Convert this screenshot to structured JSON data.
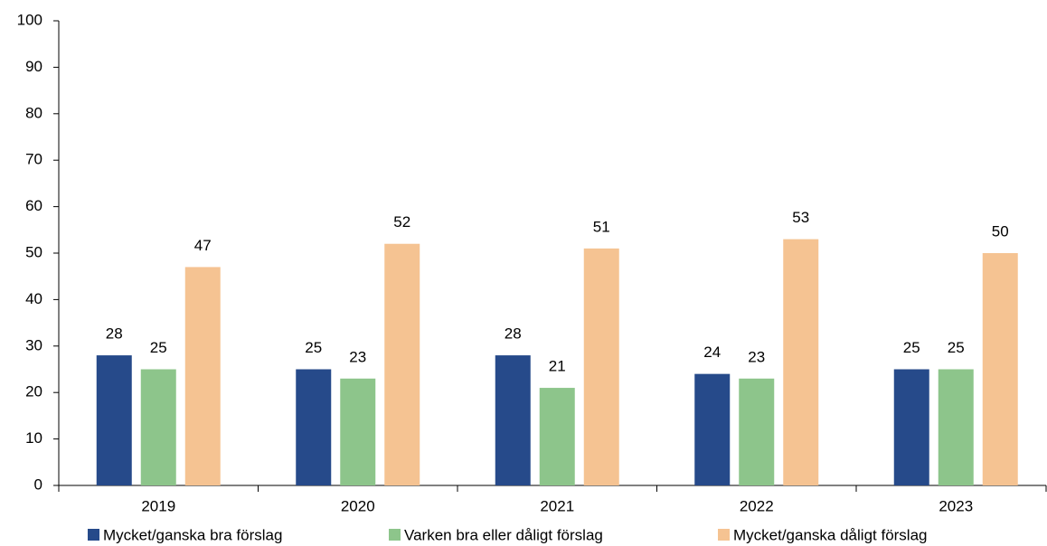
{
  "chart_data": {
    "type": "bar",
    "categories": [
      "2019",
      "2020",
      "2021",
      "2022",
      "2023"
    ],
    "series": [
      {
        "name": "Mycket/ganska bra förslag",
        "color": "#264a8a",
        "values": [
          28,
          25,
          28,
          24,
          25
        ]
      },
      {
        "name": "Varken bra eller dåligt förslag",
        "color": "#8dc58b",
        "values": [
          25,
          23,
          21,
          23,
          25
        ]
      },
      {
        "name": "Mycket/ganska dåligt förslag",
        "color": "#f5c392",
        "values": [
          47,
          52,
          51,
          53,
          50
        ]
      }
    ],
    "ylim": [
      0,
      100
    ],
    "yticks": [
      0,
      10,
      20,
      30,
      40,
      50,
      60,
      70,
      80,
      90,
      100
    ],
    "grid": false,
    "legend": "bottom"
  }
}
